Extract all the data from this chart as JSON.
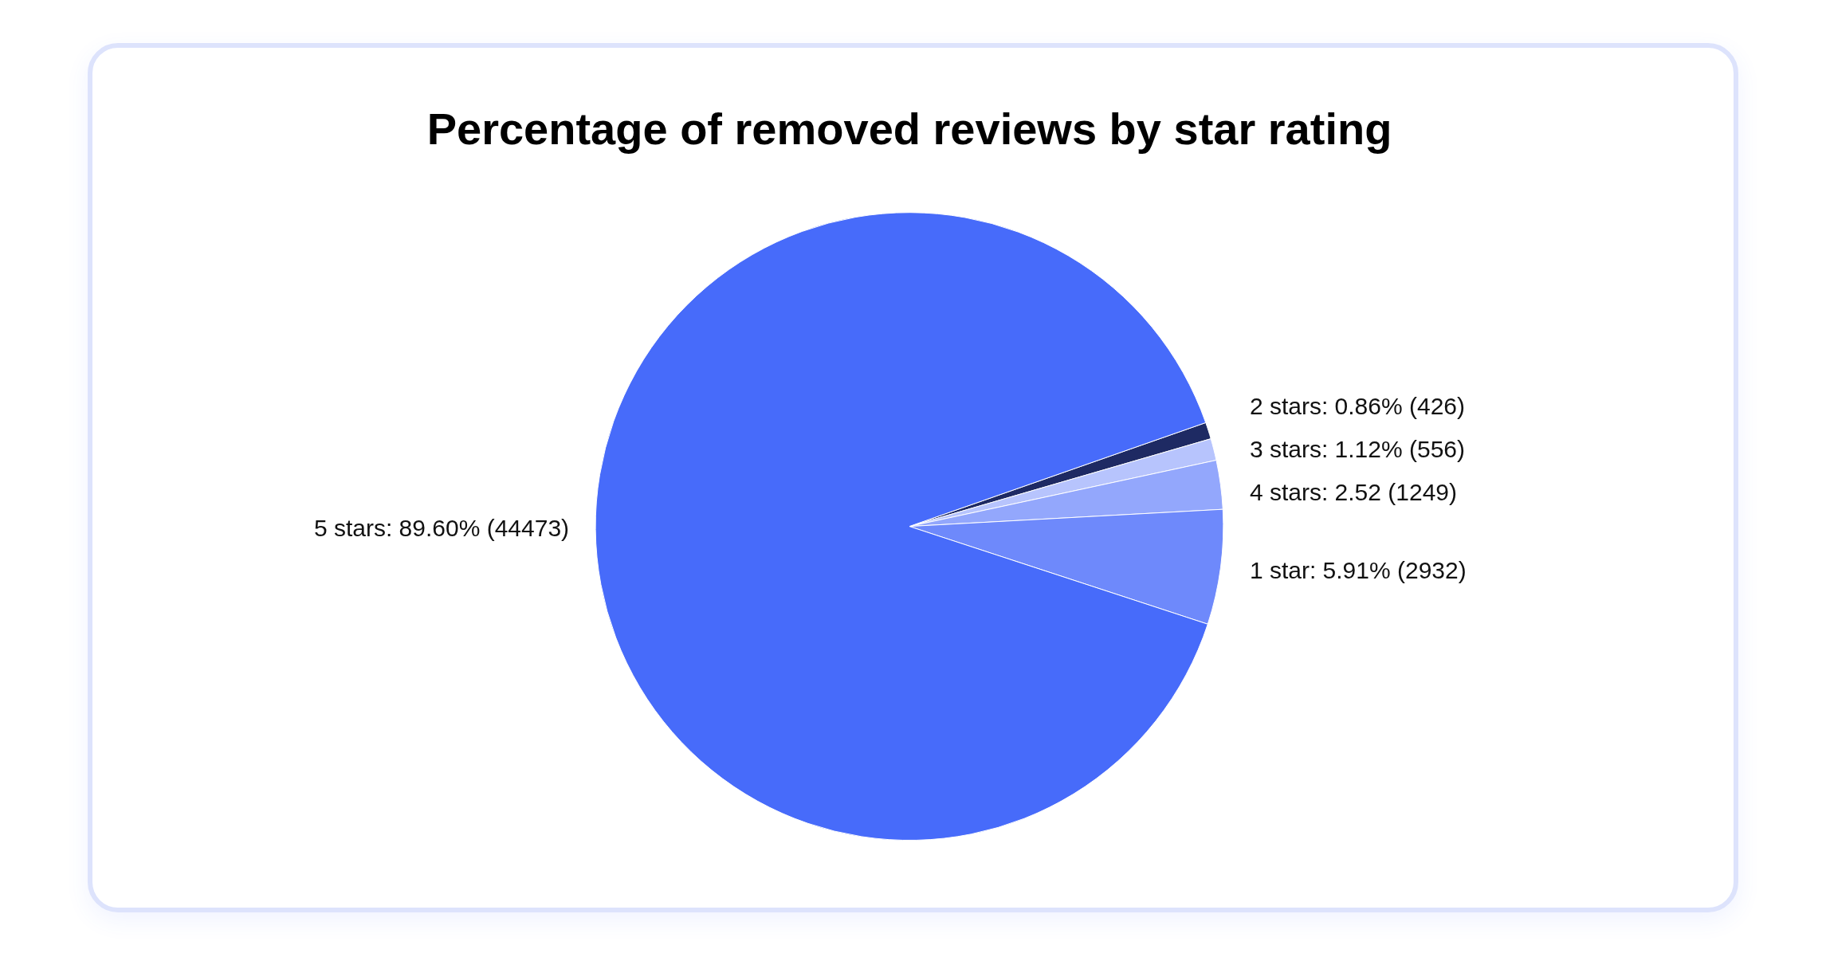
{
  "chart_data": {
    "type": "pie",
    "title": "Percentage of removed reviews by star rating",
    "categories": [
      "2 stars",
      "3 stars",
      "4 stars",
      "1 star",
      "5 stars"
    ],
    "values": [
      426,
      556,
      1249,
      2932,
      44473
    ],
    "colors": [
      "#1e2a63",
      "#b7c4fd",
      "#93a7fc",
      "#6e89fb",
      "#476bfa"
    ],
    "value_labels": [
      "0.86% (426)",
      "1.12% (556)",
      "2.52 (1249)",
      "5.91% (2932)",
      "89.60% (44473)"
    ],
    "legend": false
  }
}
